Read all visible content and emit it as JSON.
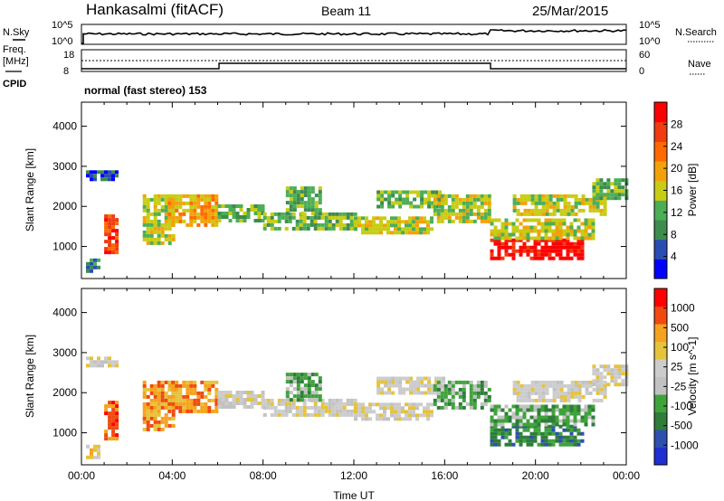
{
  "header": {
    "station": "Hankasalmi (fitACF)",
    "beam": "Beam 11",
    "date": "25/Mar/2015"
  },
  "aux_panel": {
    "left_labels": [
      "N.Sky",
      "Freq.",
      "[MHz]",
      "CPID"
    ],
    "right_labels": [
      "N.Search",
      "Nave"
    ],
    "nsky_ticks": [
      "10^5",
      "10^0"
    ],
    "freq_ticks": [
      "18",
      "8"
    ],
    "nave_ticks": [
      "60",
      "0"
    ],
    "cpid_text": "normal (fast stereo) 153"
  },
  "colors": {
    "power": [
      "#0000ff",
      "#2a4db3",
      "#3d8c4e",
      "#4cae55",
      "#c8cc14",
      "#f3a10b",
      "#ff6a00",
      "#f03c10",
      "#ff0000"
    ],
    "velocity": [
      "#ff0000",
      "#f04a10",
      "#f5a21e",
      "#e5c33b",
      "#cccccc",
      "#c2c2c2",
      "#3fa33b",
      "#2e7d3a",
      "#2d4fb0",
      "#1f2fd0"
    ]
  },
  "chart_data": [
    {
      "type": "heatmap",
      "name": "power",
      "xlabel": "",
      "ylabel": "Slant Range [km]",
      "xlim": [
        0,
        24
      ],
      "ylim": [
        200,
        4600
      ],
      "yticks": [
        1000,
        2000,
        3000,
        4000
      ],
      "colorbar_label": "Power [dB]",
      "colorbar_ticks": [
        "4",
        "8",
        "12",
        "16",
        "20",
        "24",
        "28"
      ],
      "colorbar_range": [
        0,
        30
      ]
    },
    {
      "type": "heatmap",
      "name": "velocity",
      "xlabel": "Time UT",
      "ylabel": "Slant Range [km]",
      "xlim": [
        0,
        24
      ],
      "ylim": [
        200,
        4600
      ],
      "xticks": [
        "00:00",
        "04:00",
        "08:00",
        "12:00",
        "16:00",
        "20:00",
        "00:00"
      ],
      "yticks": [
        1000,
        2000,
        3000,
        4000
      ],
      "colorbar_label": "Velocity [m s^-1]",
      "colorbar_ticks": [
        "1000",
        "500",
        "100",
        "25",
        "-25",
        "-100",
        "-500",
        "-1000"
      ]
    }
  ]
}
